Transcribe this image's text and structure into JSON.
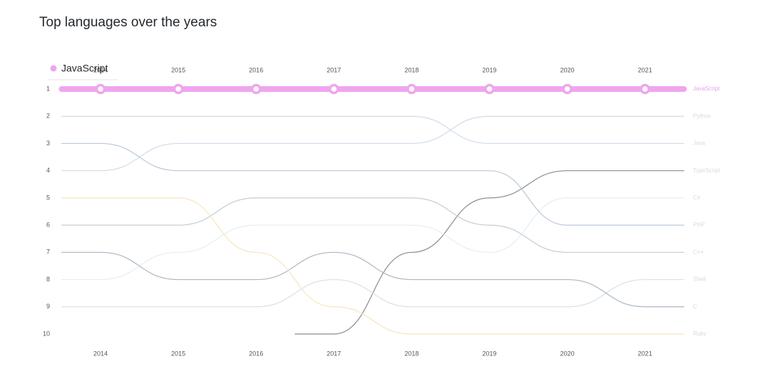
{
  "chart_data": {
    "type": "bump",
    "title": "Top languages over the years",
    "categories": [
      "2014",
      "2015",
      "2016",
      "2017",
      "2018",
      "2019",
      "2020",
      "2021"
    ],
    "ylim": [
      1,
      10
    ],
    "yticks": [
      1,
      2,
      3,
      4,
      5,
      6,
      7,
      8,
      9,
      10
    ],
    "highlight": "JavaScript",
    "series": [
      {
        "name": "JavaScript",
        "color": "#eea6ee",
        "values": [
          1,
          1,
          1,
          1,
          1,
          1,
          1,
          1
        ]
      },
      {
        "name": "Python",
        "color": "#cfdcea",
        "values": [
          4,
          3,
          3,
          3,
          3,
          2,
          2,
          2
        ]
      },
      {
        "name": "Java",
        "color": "#cfdcea",
        "values": [
          2,
          2,
          2,
          2,
          2,
          3,
          3,
          3
        ]
      },
      {
        "name": "TypeScript",
        "color": "#8c8c8c",
        "values": [
          null,
          null,
          null,
          10,
          7,
          5,
          4,
          4
        ]
      },
      {
        "name": "C#",
        "color": "#e4eef2",
        "values": [
          8,
          7,
          6,
          6,
          6,
          7,
          5,
          5
        ]
      },
      {
        "name": "PHP",
        "color": "#b9c8d8",
        "values": [
          3,
          4,
          4,
          4,
          4,
          4,
          6,
          6
        ]
      },
      {
        "name": "C++",
        "color": "#c3cdd6",
        "values": [
          6,
          6,
          5,
          5,
          5,
          6,
          7,
          7
        ]
      },
      {
        "name": "Shell",
        "color": "#d6e2e8",
        "values": [
          9,
          9,
          9,
          8,
          9,
          9,
          9,
          8
        ]
      },
      {
        "name": "C",
        "color": "#a9b7c4",
        "values": [
          7,
          8,
          8,
          7,
          8,
          8,
          8,
          9
        ]
      },
      {
        "name": "Ruby",
        "color": "#f6e6bd",
        "values": [
          5,
          5,
          7,
          9,
          10,
          10,
          10,
          10
        ]
      }
    ]
  }
}
